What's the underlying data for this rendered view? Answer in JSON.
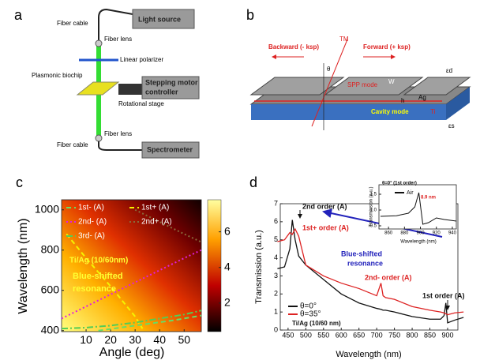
{
  "panels": {
    "a": {
      "label": "a",
      "texts": [
        "Fiber cable",
        "Light source",
        "Fiber lens",
        "Linear polarizer",
        "Plasmonic biochip",
        "Stepping motor",
        "controller",
        "Rotational stage",
        "Fiber lens",
        "Fiber cable",
        "Spectrometer"
      ]
    },
    "b": {
      "label": "b",
      "texts": [
        "Backward (- ksp)",
        "TM",
        "Forward (+ ksp)",
        "θ",
        "SPP mode",
        "W",
        "h",
        "Ag",
        "εd",
        "Cavity mode",
        "Ti",
        "εs"
      ]
    }
  },
  "chart_data": [
    {
      "type": "heatmap",
      "panel_label": "c",
      "xlabel": "Angle (deg)",
      "ylabel": "Wavelength (nm)",
      "xlim": [
        0,
        57
      ],
      "xticks": [
        10,
        20,
        30,
        40,
        50
      ],
      "ylim": [
        395,
        1050
      ],
      "yticks": [
        400,
        600,
        800,
        1000
      ],
      "clim": [
        0.4,
        7.8
      ],
      "cticks": [
        2,
        4,
        6
      ],
      "series": [
        {
          "name": "1st- (A)",
          "color": "#66dd66",
          "style": "dashed",
          "x": [
            15,
            30,
            45,
            57
          ],
          "values": [
            400,
            425,
            450,
            475
          ]
        },
        {
          "name": "1st+ (A)",
          "color": "#f4f400",
          "style": "dashed",
          "x": [
            2,
            10,
            20,
            30,
            33
          ],
          "values": [
            880,
            760,
            620,
            470,
            410
          ]
        },
        {
          "name": "2nd- (A)",
          "color": "#e020e0",
          "style": "dotted",
          "x": [
            0,
            10,
            20,
            30,
            40,
            50,
            57
          ],
          "values": [
            460,
            520,
            580,
            640,
            700,
            760,
            800
          ]
        },
        {
          "name": "2nd+ (A)",
          "color": "#8a6a3a",
          "style": "dotted",
          "x": [
            30,
            40,
            50,
            57
          ],
          "values": [
            1000,
            940,
            880,
            840
          ]
        },
        {
          "name": "3rd- (A)",
          "color": "#55cc55",
          "style": "dashdot",
          "x": [
            0,
            10,
            20,
            30,
            40,
            50,
            57
          ],
          "values": [
            410,
            415,
            425,
            440,
            460,
            480,
            500
          ]
        }
      ],
      "annotations": [
        "Ti/Ag (10/60nm)",
        "Blue-shifted",
        "resonance"
      ]
    },
    {
      "type": "line",
      "panel_label": "d",
      "xlabel": "Wavelength (nm)",
      "ylabel": "Transmission (a.u.)",
      "xlim": [
        428,
        929
      ],
      "xticks": [
        450,
        500,
        550,
        600,
        650,
        700,
        750,
        800,
        850,
        900
      ],
      "ylim": [
        0,
        7
      ],
      "yticks": [
        0,
        1,
        2,
        3,
        4,
        5,
        6,
        7
      ],
      "x": [
        420,
        440,
        455,
        462,
        470,
        480,
        500,
        550,
        600,
        650,
        700,
        712,
        718,
        725,
        750,
        800,
        850,
        880,
        890,
        895,
        900,
        920,
        945
      ],
      "series": [
        {
          "name": "θ=0°",
          "color": "#111111",
          "values": [
            3.4,
            3.5,
            4.5,
            6.1,
            5.0,
            4.1,
            3.6,
            2.8,
            2.0,
            1.5,
            1.2,
            1.15,
            1.1,
            1.1,
            1.0,
            0.75,
            0.6,
            0.6,
            0.8,
            1.5,
            0.4,
            0.55,
            0.7
          ]
        },
        {
          "name": "θ=35°",
          "color": "#dd2222",
          "values": [
            4.9,
            5.0,
            5.4,
            5.3,
            5.6,
            5.2,
            3.6,
            3.0,
            2.6,
            2.3,
            1.9,
            2.6,
            1.9,
            1.8,
            1.7,
            1.3,
            1.1,
            1.0,
            0.95,
            0.9,
            0.85,
            0.95,
            1.0
          ]
        }
      ],
      "annotations": [
        "2nd order (A)",
        "1st+ order (A)",
        "Blue-shifted",
        "resonance",
        "2nd- order (A)",
        "1st order (A)",
        "Ti/Ag (10/60 nm)"
      ]
    },
    {
      "type": "line",
      "xlabel": "Wavelength (nm)",
      "ylabel": "Transmission (a.u.)",
      "xlim": [
        848,
        945
      ],
      "xticks": [
        860,
        880,
        900,
        920,
        940
      ],
      "ylim": [
        0.4,
        1.8
      ],
      "yticks": [
        {
          "value": 0.5,
          "label": "0.5"
        },
        {
          "value": 1.0,
          "label": "1.0"
        },
        {
          "value": 1.5,
          "label": "1.5"
        }
      ],
      "x": [
        850,
        870,
        885,
        893,
        898,
        903,
        910,
        920,
        930,
        945
      ],
      "series": [
        {
          "name": "Air",
          "color": "#111111",
          "values": [
            0.8,
            0.82,
            0.9,
            1.1,
            1.55,
            0.55,
            0.6,
            0.75,
            0.7,
            0.65
          ]
        }
      ],
      "annotations": [
        "θ=0° (1st order)",
        "8.9 nm"
      ]
    }
  ]
}
